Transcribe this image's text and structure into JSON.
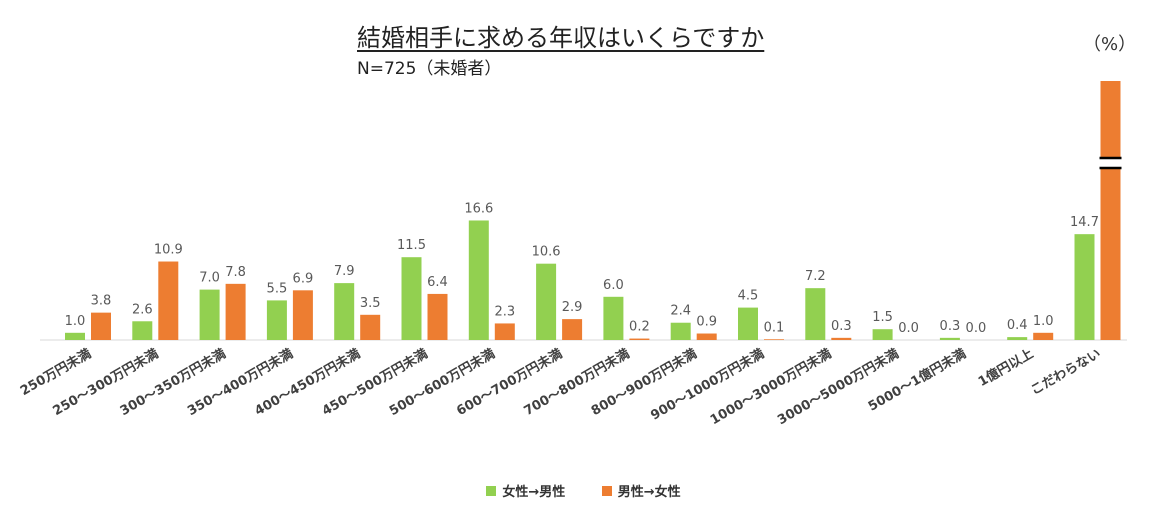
{
  "title": "結婚相手に求める年収はいくらですか",
  "subtitle": "N=725（未婚者）",
  "unit_label": "（%）",
  "colors": {
    "female_to_male": "#92d050",
    "male_to_female": "#ed7d31",
    "axis": "#d9d9d9",
    "label": "#595959"
  },
  "chart_data": {
    "type": "bar",
    "categories": [
      "250万円未満",
      "250～300万円未満",
      "300～350万円未満",
      "350～400万円未満",
      "400～450万円未満",
      "450～500万円未満",
      "500～600万円未満",
      "600～700万円未満",
      "700～800万円未満",
      "800～900万円未満",
      "900～1000万円未満",
      "1000～3000万円未満",
      "3000～5000万円未満",
      "5000～1億円未満",
      "1億円以上",
      "こだわらない"
    ],
    "series": [
      {
        "name": "女性→男性",
        "values": [
          1.0,
          2.6,
          7.0,
          5.5,
          7.9,
          11.5,
          16.6,
          10.6,
          6.0,
          2.4,
          4.5,
          7.2,
          1.5,
          0.3,
          0.4,
          14.7
        ],
        "labels": [
          "1.0",
          "2.6",
          "7.0",
          "5.5",
          "7.9",
          "11.5",
          "16.6",
          "10.6",
          "6.0",
          "2.4",
          "4.5",
          "7.2",
          "1.5",
          "0.3",
          "0.4",
          "14.7"
        ]
      },
      {
        "name": "男性→女性",
        "values": [
          3.8,
          10.9,
          7.8,
          6.9,
          3.5,
          6.4,
          2.3,
          2.9,
          0.2,
          0.9,
          0.1,
          0.3,
          0.0,
          0.0,
          1.0,
          null
        ],
        "labels": [
          "3.8",
          "10.9",
          "7.8",
          "6.9",
          "3.5",
          "6.4",
          "2.3",
          "2.9",
          "0.2",
          "0.9",
          "0.1",
          "0.3",
          "0.0",
          "0.0",
          "1.0",
          ""
        ]
      }
    ],
    "broken_bar": {
      "category_index": 15,
      "series_index": 1,
      "note": "bar exceeds axis; drawn with break mark, value label not shown"
    },
    "ylim": [
      0,
      17
    ],
    "grid": false,
    "legend_position": "bottom"
  }
}
